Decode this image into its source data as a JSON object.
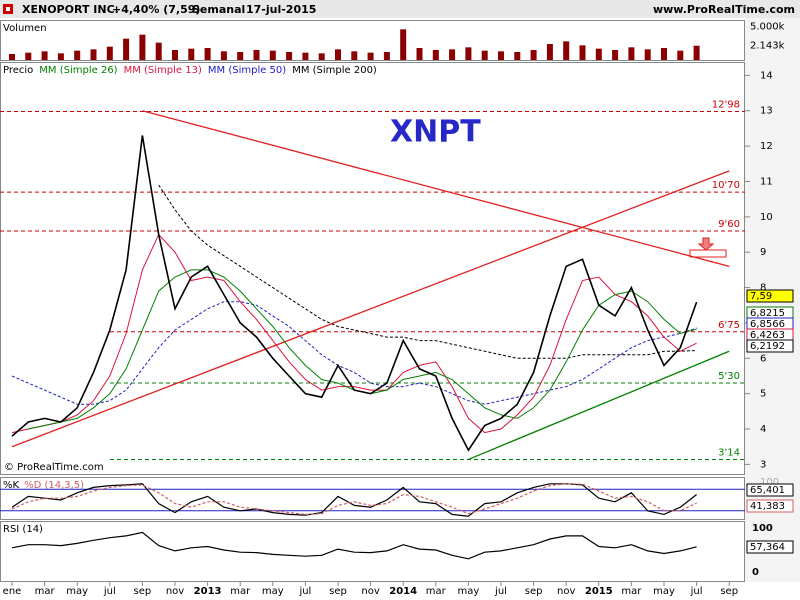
{
  "chart_data": {
    "type": "stock",
    "header": {
      "name": "XENOPORT INC.",
      "change": "+4,40% (7,59)",
      "period": "Semanal",
      "date": "17-jul-2015",
      "site": "www.ProRealTime.com"
    },
    "symbol": "XNPT",
    "copyright": "© ProRealTime.com",
    "x": [
      "2012-01",
      "2012-02",
      "2012-03",
      "2012-04",
      "2012-05",
      "2012-06",
      "2012-07",
      "2012-08",
      "2012-09",
      "2012-10",
      "2012-11",
      "2012-12",
      "2013-01",
      "2013-02",
      "2013-03",
      "2013-04",
      "2013-05",
      "2013-06",
      "2013-07",
      "2013-08",
      "2013-09",
      "2013-10",
      "2013-11",
      "2013-12",
      "2014-01",
      "2014-02",
      "2014-03",
      "2014-04",
      "2014-05",
      "2014-06",
      "2014-07",
      "2014-08",
      "2014-09",
      "2014-10",
      "2014-11",
      "2014-12",
      "2015-01",
      "2015-02",
      "2015-03",
      "2015-04",
      "2015-05",
      "2015-06",
      "2015-07"
    ],
    "xticks": [
      {
        "value": "2012-01",
        "label": "ene"
      },
      {
        "value": "2012-03",
        "label": "mar"
      },
      {
        "value": "2012-05",
        "label": "may"
      },
      {
        "value": "2012-07",
        "label": "jul"
      },
      {
        "value": "2012-09",
        "label": "sep"
      },
      {
        "value": "2012-11",
        "label": "nov"
      },
      {
        "value": "2013-01",
        "label": "2013"
      },
      {
        "value": "2013-03",
        "label": "mar"
      },
      {
        "value": "2013-05",
        "label": "may"
      },
      {
        "value": "2013-07",
        "label": "jul"
      },
      {
        "value": "2013-09",
        "label": "sep"
      },
      {
        "value": "2013-11",
        "label": "nov"
      },
      {
        "value": "2014-01",
        "label": "2014"
      },
      {
        "value": "2014-03",
        "label": "mar"
      },
      {
        "value": "2014-05",
        "label": "may"
      },
      {
        "value": "2014-07",
        "label": "jul"
      },
      {
        "value": "2014-09",
        "label": "sep"
      },
      {
        "value": "2014-11",
        "label": "nov"
      },
      {
        "value": "2015-01",
        "label": "2015"
      },
      {
        "value": "2015-03",
        "label": "mar"
      },
      {
        "value": "2015-05",
        "label": "may"
      },
      {
        "value": "2015-07",
        "label": "jul"
      },
      {
        "value": "2015-09",
        "label": "sep"
      }
    ],
    "volume": {
      "title": "Volumen",
      "color": "#8b0000",
      "ylim": [
        0,
        5700
      ],
      "yticks": [
        {
          "value": 5000,
          "label": "5.000k"
        }
      ],
      "values": [
        900,
        1100,
        1300,
        1000,
        1400,
        1600,
        2000,
        3200,
        3800,
        2600,
        1500,
        1700,
        1800,
        1300,
        1200,
        1500,
        1400,
        1200,
        1100,
        1000,
        1600,
        1300,
        1100,
        1200,
        4600,
        1800,
        1500,
        1600,
        1900,
        1400,
        1300,
        1200,
        1500,
        2400,
        2800,
        2200,
        1700,
        1500,
        1900,
        1600,
        1800,
        1400,
        2143
      ],
      "last": {
        "value": 2143,
        "label": "2.143k"
      }
    },
    "price": {
      "label": "Precio",
      "ylim": [
        2.7,
        14.35
      ],
      "yticks": [
        3,
        4,
        5,
        6,
        7,
        8,
        9,
        10,
        11,
        12,
        13,
        14
      ],
      "series": [
        {
          "name": "Precio",
          "color": "#000000",
          "values": [
            3.8,
            4.2,
            4.3,
            4.2,
            4.6,
            5.6,
            6.8,
            8.5,
            12.3,
            9.5,
            7.4,
            8.3,
            8.6,
            7.8,
            7.0,
            6.6,
            6.0,
            5.5,
            5.0,
            4.9,
            5.8,
            5.1,
            5.0,
            5.3,
            6.5,
            5.7,
            5.5,
            4.3,
            3.4,
            4.1,
            4.3,
            4.7,
            5.6,
            7.2,
            8.6,
            8.8,
            7.5,
            7.2,
            8.0,
            6.8,
            5.8,
            6.3,
            7.59
          ],
          "last": {
            "value": 7.59,
            "label": "7,59"
          },
          "box": "#ffff00"
        },
        {
          "name": "MM (Simple 26)",
          "color": "#008000",
          "values": [
            null,
            4.0,
            4.1,
            4.2,
            4.3,
            4.6,
            5.0,
            5.7,
            6.8,
            7.9,
            8.3,
            8.5,
            8.5,
            8.3,
            7.9,
            7.4,
            6.9,
            6.3,
            5.8,
            5.4,
            5.3,
            5.1,
            5.0,
            5.1,
            5.4,
            5.5,
            5.6,
            5.4,
            5.0,
            4.6,
            4.4,
            4.3,
            4.6,
            5.1,
            5.9,
            6.8,
            7.5,
            7.8,
            7.9,
            7.6,
            7.1,
            6.7,
            6.8215
          ],
          "last": {
            "value": 6.8215,
            "label": "6,8215"
          }
        },
        {
          "name": "MM (Simple 13)",
          "color": "#dc143c",
          "values": [
            3.9,
            4.0,
            4.1,
            4.2,
            4.4,
            4.8,
            5.5,
            6.7,
            8.5,
            9.5,
            9.0,
            8.2,
            8.3,
            8.2,
            7.6,
            7.1,
            6.5,
            5.9,
            5.4,
            5.1,
            5.2,
            5.2,
            5.1,
            5.1,
            5.6,
            5.8,
            5.9,
            5.2,
            4.3,
            3.9,
            4.0,
            4.4,
            4.9,
            5.8,
            7.1,
            8.2,
            8.3,
            7.8,
            7.6,
            7.2,
            6.6,
            6.2,
            6.4263
          ],
          "last": {
            "value": 6.4263,
            "label": "6,4263"
          }
        },
        {
          "name": "MM (Simple 50)",
          "color": "#2020c0",
          "dash": true,
          "values": [
            5.5,
            5.3,
            5.1,
            4.9,
            4.7,
            4.7,
            4.8,
            5.1,
            5.7,
            6.3,
            6.8,
            7.1,
            7.4,
            7.6,
            7.6,
            7.5,
            7.2,
            6.9,
            6.5,
            6.1,
            5.8,
            5.6,
            5.3,
            5.2,
            5.2,
            5.3,
            5.2,
            5.0,
            4.8,
            4.7,
            4.8,
            4.9,
            5.0,
            5.1,
            5.2,
            5.4,
            5.7,
            6.0,
            6.3,
            6.5,
            6.6,
            6.7,
            6.8566
          ],
          "last": {
            "value": 6.8566,
            "label": "6,8566"
          }
        },
        {
          "name": "MM (Simple 200)",
          "color": "#000000",
          "dash": true,
          "values": [
            null,
            null,
            null,
            null,
            null,
            null,
            null,
            null,
            null,
            10.9,
            10.2,
            9.6,
            9.2,
            8.9,
            8.6,
            8.3,
            8.0,
            7.7,
            7.4,
            7.1,
            6.9,
            6.8,
            6.7,
            6.6,
            6.6,
            6.5,
            6.5,
            6.4,
            6.3,
            6.2,
            6.1,
            6.0,
            6.0,
            6.0,
            6.0,
            6.1,
            6.1,
            6.1,
            6.1,
            6.1,
            6.2,
            6.2,
            6.2192
          ],
          "last": {
            "value": 6.2192,
            "label": "6,2192"
          }
        }
      ],
      "levels": [
        {
          "value": 12.98,
          "label": "12'98",
          "color": "#cc0000"
        },
        {
          "value": 10.7,
          "label": "10'70",
          "color": "#cc0000"
        },
        {
          "value": 9.6,
          "label": "9'60",
          "color": "#cc0000"
        },
        {
          "value": 6.75,
          "label": "6'75",
          "color": "#cc0000"
        },
        {
          "value": 5.3,
          "label": "5'30",
          "color": "#008000"
        },
        {
          "value": 3.14,
          "label": "3'14",
          "color": "#008000"
        }
      ],
      "trendlines": [
        {
          "color": "#e02020",
          "x": [
            "2012-09",
            "2015-09"
          ],
          "y": [
            13.0,
            8.6
          ]
        },
        {
          "color": "#e02020",
          "x": [
            "2012-01",
            "2015-09"
          ],
          "y": [
            3.5,
            11.3
          ]
        },
        {
          "color": "#008000",
          "x": [
            "2014-05",
            "2015-09"
          ],
          "y": [
            3.14,
            6.2
          ]
        }
      ]
    },
    "stochastic": {
      "labels": [
        "%K",
        "%D (14,3,5)"
      ],
      "ylim": [
        0,
        100
      ],
      "yticks": [
        100
      ],
      "bands": [
        20,
        80
      ],
      "series": [
        {
          "name": "%K",
          "color": "#000000",
          "values": [
            30,
            60,
            55,
            50,
            70,
            85,
            90,
            92,
            95,
            40,
            15,
            45,
            60,
            30,
            20,
            25,
            15,
            10,
            8,
            15,
            60,
            35,
            30,
            50,
            85,
            45,
            40,
            10,
            5,
            40,
            45,
            70,
            85,
            95,
            95,
            92,
            55,
            45,
            70,
            20,
            10,
            30,
            65.401
          ],
          "last": {
            "value": 65.401,
            "label": "65,401"
          }
        },
        {
          "name": "%D",
          "color": "#d06060",
          "values": [
            25,
            45,
            55,
            55,
            60,
            75,
            85,
            90,
            92,
            70,
            40,
            30,
            45,
            45,
            30,
            25,
            20,
            15,
            10,
            12,
            35,
            45,
            35,
            40,
            65,
            60,
            45,
            30,
            12,
            25,
            40,
            55,
            75,
            90,
            95,
            94,
            75,
            55,
            60,
            45,
            20,
            20,
            41.383
          ],
          "last": {
            "value": 41.383,
            "label": "41,383"
          }
        }
      ]
    },
    "rsi": {
      "label": "RSI (14)",
      "color": "#000000",
      "ylim": [
        0,
        100
      ],
      "yticks": [
        100,
        50,
        0
      ],
      "values": [
        55,
        62,
        62,
        60,
        65,
        72,
        78,
        82,
        90,
        60,
        48,
        55,
        58,
        50,
        45,
        44,
        40,
        38,
        36,
        38,
        52,
        45,
        44,
        48,
        62,
        52,
        50,
        38,
        30,
        45,
        48,
        55,
        62,
        75,
        82,
        82,
        58,
        55,
        62,
        48,
        42,
        48,
        57.364
      ],
      "last": {
        "value": 57.364,
        "label": "57,364"
      }
    }
  }
}
